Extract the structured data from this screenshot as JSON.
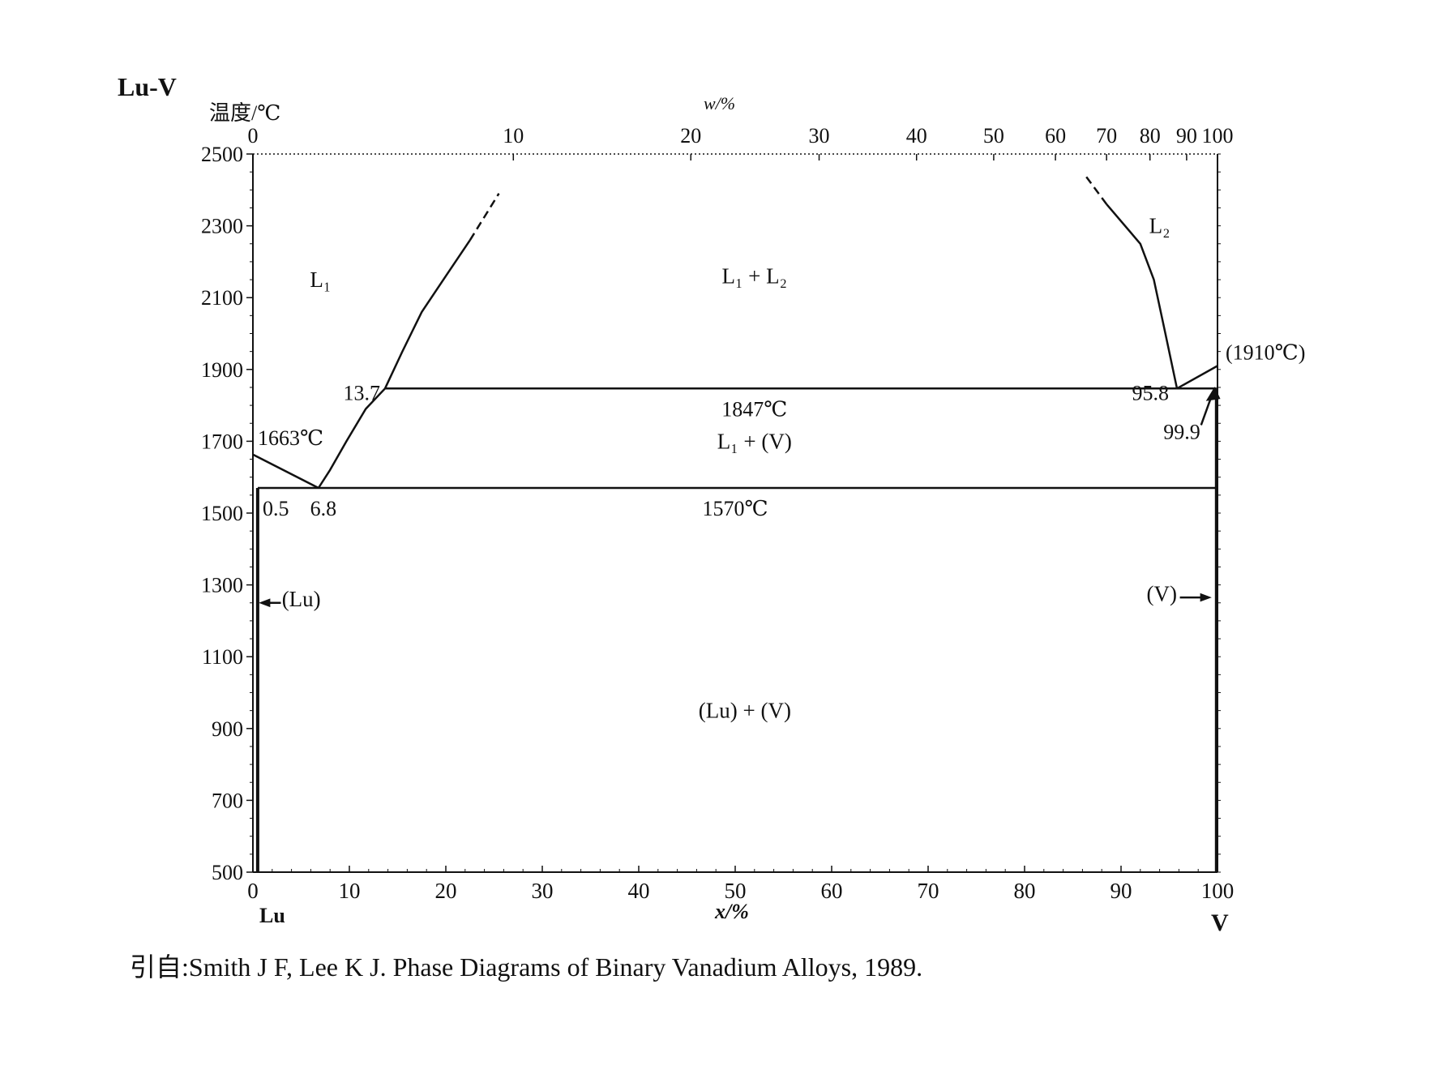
{
  "system_label": "Lu-V",
  "left_axis_title": "温度/℃",
  "top_axis_title": "w/%",
  "bottom_axis_title": "x/%",
  "bottom_left_element": "Lu",
  "bottom_right_element": "V",
  "caption": "引自:Smith J F, Lee K J. Phase Diagrams of Binary Vanadium Alloys, 1989.",
  "chart_data": {
    "type": "phase-diagram",
    "y_ticks": [
      500,
      700,
      900,
      1100,
      1300,
      1500,
      1700,
      1900,
      2100,
      2300,
      2500
    ],
    "ylim": [
      500,
      2500
    ],
    "x_ticks": [
      0,
      10,
      20,
      30,
      40,
      50,
      60,
      70,
      80,
      90,
      100
    ],
    "xlim": [
      0,
      100
    ],
    "top_ticks": [
      {
        "label": "0",
        "x": 0
      },
      {
        "label": "10",
        "x": 27.0
      },
      {
        "label": "20",
        "x": 45.4
      },
      {
        "label": "30",
        "x": 58.7
      },
      {
        "label": "40",
        "x": 68.8
      },
      {
        "label": "50",
        "x": 76.8
      },
      {
        "label": "60",
        "x": 83.2
      },
      {
        "label": "70",
        "x": 88.5
      },
      {
        "label": "80",
        "x": 93.0
      },
      {
        "label": "90",
        "x": 96.8
      },
      {
        "label": "100",
        "x": 100
      }
    ],
    "isotherms": [
      {
        "name": "monotectic",
        "T": 1847,
        "x_start": 13.7,
        "x_end": 99.9,
        "label": "1847℃"
      },
      {
        "name": "eutectic",
        "T": 1570,
        "x_start": 0.5,
        "x_end": 100,
        "label": "1570℃"
      }
    ],
    "curves": [
      {
        "name": "lu-liquidus-to-eutectic",
        "points": [
          [
            0,
            1663
          ],
          [
            6.8,
            1570
          ]
        ]
      },
      {
        "name": "v-liquidus-lower",
        "points": [
          [
            6.8,
            1570
          ],
          [
            8.0,
            1620
          ],
          [
            9.7,
            1700
          ],
          [
            11.7,
            1790
          ],
          [
            13.7,
            1847
          ]
        ]
      },
      {
        "name": "miscibility-gap-left",
        "points": [
          [
            13.7,
            1847
          ],
          [
            15.5,
            1950
          ],
          [
            17.5,
            2060
          ],
          [
            20,
            2160
          ],
          [
            22.5,
            2260
          ]
        ]
      },
      {
        "name": "miscibility-gap-left-dashed",
        "style": "dashed",
        "points": [
          [
            22.5,
            2260
          ],
          [
            25.5,
            2390
          ]
        ]
      },
      {
        "name": "miscibility-gap-right",
        "points": [
          [
            95.8,
            1847
          ],
          [
            94.6,
            2000
          ],
          [
            93.4,
            2150
          ],
          [
            92,
            2250
          ],
          [
            88.5,
            2360
          ]
        ]
      },
      {
        "name": "miscibility-gap-right-dashed",
        "style": "dashed",
        "points": [
          [
            88.5,
            2360
          ],
          [
            86.3,
            2440
          ]
        ]
      },
      {
        "name": "v-liquidus-upper",
        "points": [
          [
            95.8,
            1847
          ],
          [
            100,
            1910
          ]
        ]
      },
      {
        "name": "lu-solvus",
        "points": [
          [
            0.5,
            1570
          ],
          [
            0.5,
            500
          ]
        ]
      },
      {
        "name": "v-solvus",
        "points": [
          [
            99.9,
            1847
          ],
          [
            99.9,
            500
          ]
        ]
      }
    ],
    "annotations": [
      {
        "text": "1663℃",
        "x": 0,
        "T": 1663
      },
      {
        "text": "13.7",
        "x": 13.7,
        "T": 1847
      },
      {
        "text": "0.5",
        "x": 0.5,
        "T": 1570
      },
      {
        "text": "6.8",
        "x": 6.8,
        "T": 1570
      },
      {
        "text": "95.8",
        "x": 95.8,
        "T": 1847
      },
      {
        "text": "99.9",
        "x": 99.9,
        "T": 1847
      },
      {
        "text": "(1910℃)",
        "x": 100,
        "T": 1910
      }
    ],
    "regions": [
      {
        "label": "L₁",
        "x": 7,
        "T": 2150
      },
      {
        "label": "L₁ + L₂",
        "x": 52,
        "T": 2160
      },
      {
        "label": "L₂",
        "x": 94,
        "T": 2300
      },
      {
        "label": "L₁ + (V)",
        "x": 52,
        "T": 1700
      },
      {
        "label": "(Lu)",
        "label_side": "left"
      },
      {
        "label": "(V)",
        "label_side": "right"
      },
      {
        "label": "(Lu) + (V)",
        "x": 51,
        "T": 950
      }
    ]
  }
}
